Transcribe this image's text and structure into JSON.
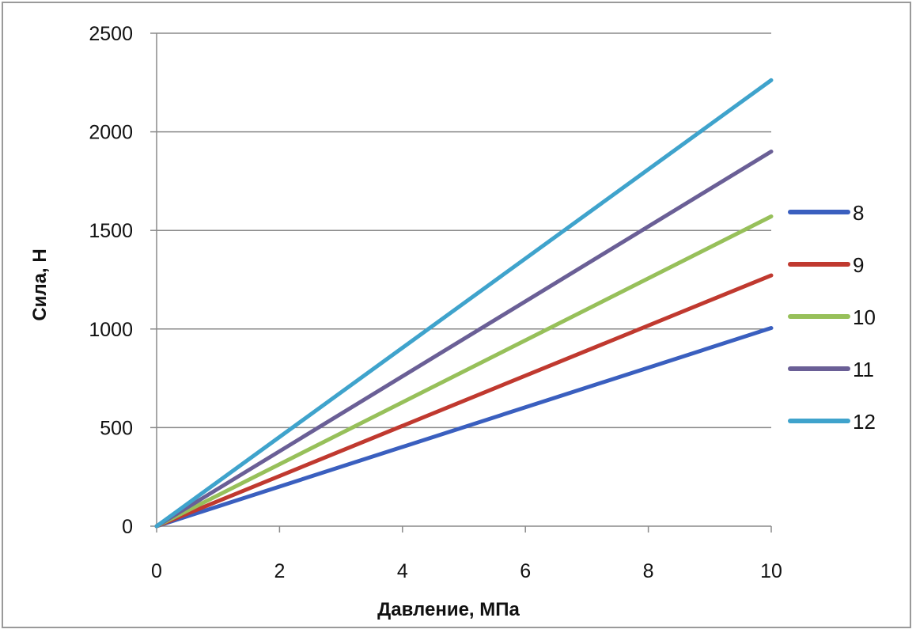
{
  "chart_data": {
    "type": "line",
    "title": "",
    "xlabel": "Давление, МПа",
    "ylabel": "Сила, Н",
    "xlim": [
      0,
      10
    ],
    "ylim": [
      0,
      2500
    ],
    "xticks": [
      0,
      2,
      4,
      6,
      8,
      10
    ],
    "yticks": [
      0,
      500,
      1000,
      1500,
      2000,
      2500
    ],
    "grid": "horizontal",
    "legend": "right",
    "x": [
      0,
      10
    ],
    "series": [
      {
        "name": "8",
        "color": "#3a5fbf",
        "values": [
          0,
          1005
        ]
      },
      {
        "name": "9",
        "color": "#c0392f",
        "values": [
          0,
          1272
        ]
      },
      {
        "name": "10",
        "color": "#97c05a",
        "values": [
          0,
          1571
        ]
      },
      {
        "name": "11",
        "color": "#6a5f96",
        "values": [
          0,
          1900
        ]
      },
      {
        "name": "12",
        "color": "#3fa3cc",
        "values": [
          0,
          2262
        ]
      }
    ]
  }
}
